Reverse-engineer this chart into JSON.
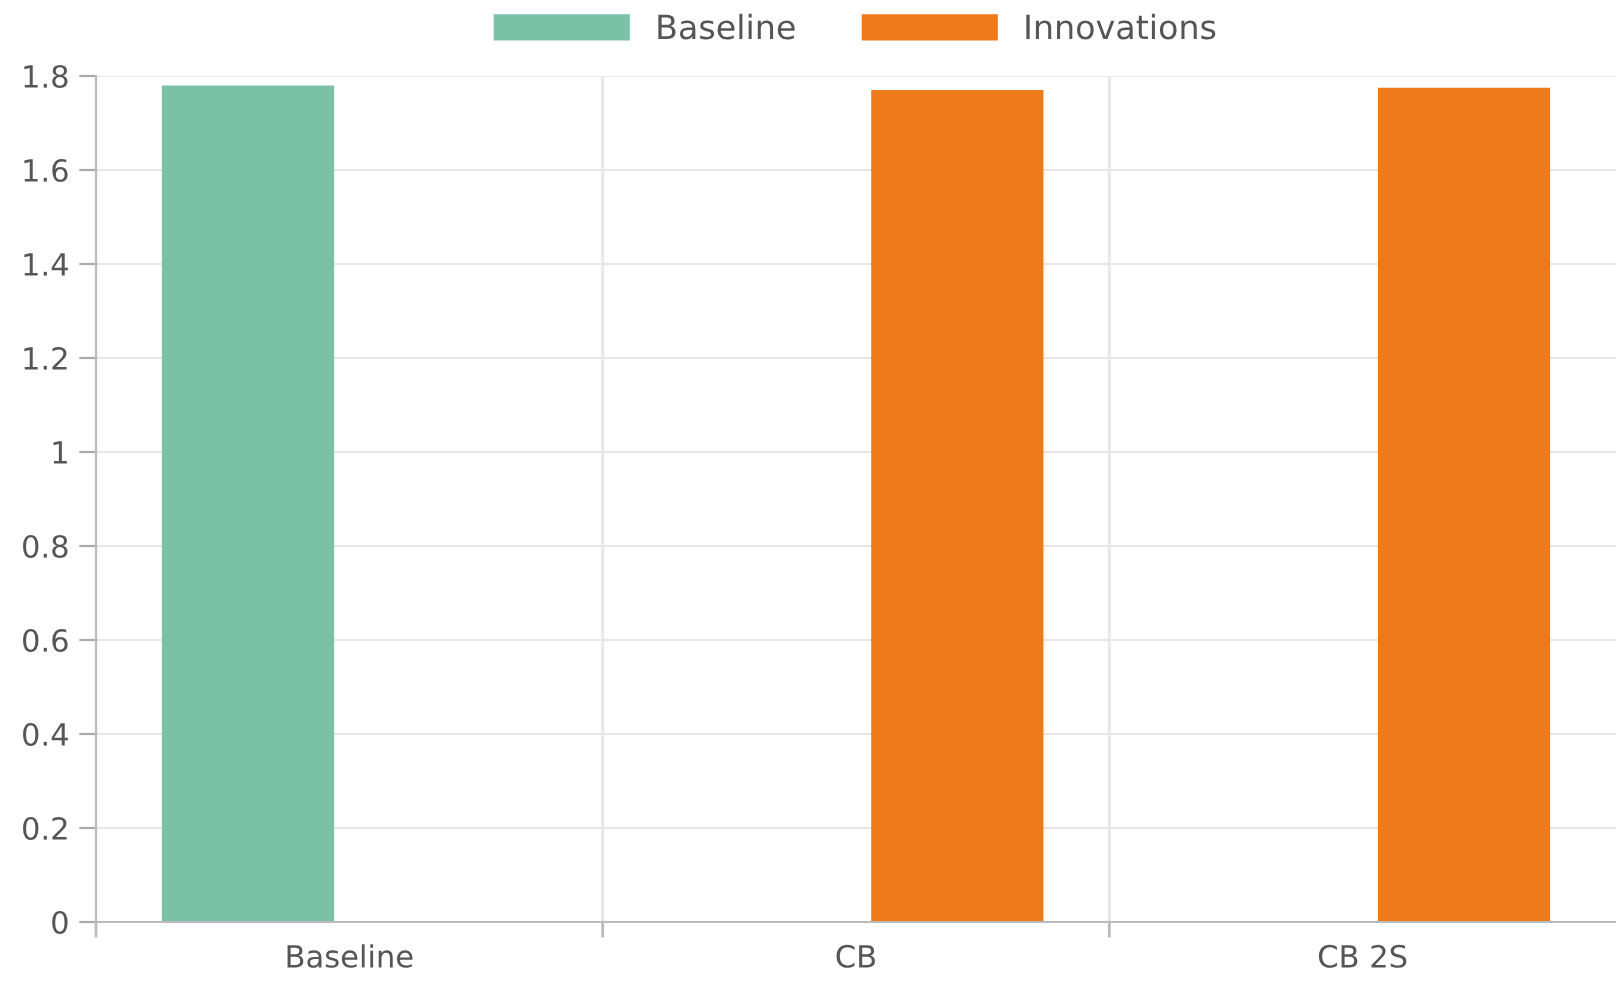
{
  "chart_data": {
    "type": "bar",
    "categories": [
      "Baseline",
      "CB",
      "CB 2S"
    ],
    "series": [
      {
        "name": "Baseline",
        "color": "#7bc1a8",
        "values": [
          1.78,
          null,
          null
        ]
      },
      {
        "name": "Innovations",
        "color": "#ee7a19",
        "values": [
          null,
          1.77,
          1.775
        ]
      }
    ],
    "ylim": [
      0,
      1.8
    ],
    "yticks": [
      0,
      0.2,
      0.4,
      0.6,
      0.8,
      1,
      1.2,
      1.4,
      1.6,
      1.8
    ],
    "grid": true,
    "legend": "top"
  }
}
